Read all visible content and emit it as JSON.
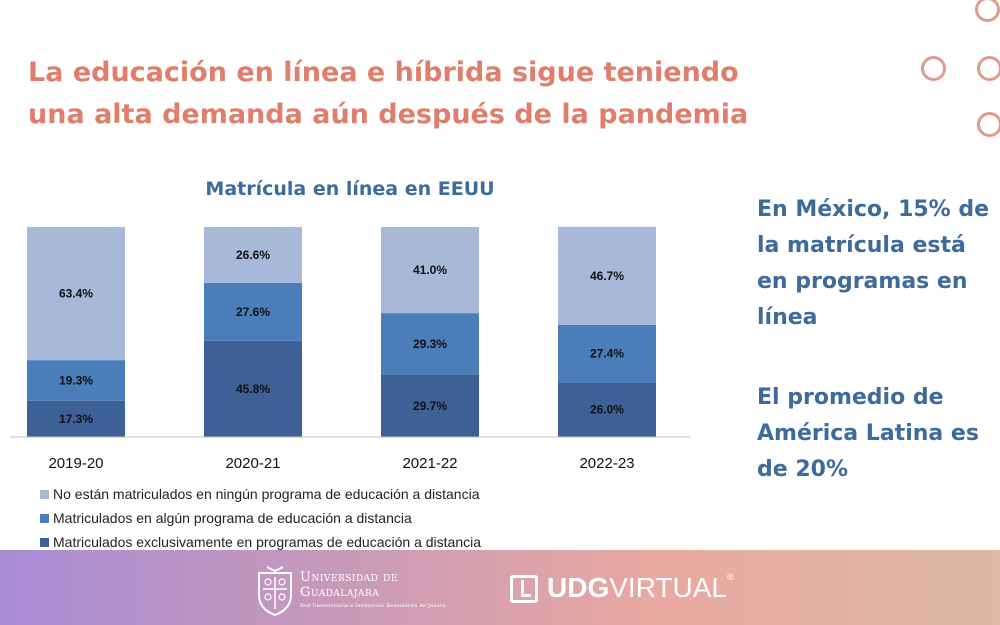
{
  "slide": {
    "title_line1": "La educación en línea e híbrida sigue teniendo",
    "title_line2": "una alta demanda aún después de la pandemia"
  },
  "side_text": {
    "block1": "En México, 15% de la matrícula está en programas en línea",
    "block2": "El promedio de América Latina es de 20%"
  },
  "chart_data": {
    "type": "bar",
    "stacked": true,
    "title": "Matrícula en línea en EEUU",
    "categories": [
      "2019-20",
      "2020-21",
      "2021-22",
      "2022-23"
    ],
    "series": [
      {
        "name": "Matriculados exclusivamente en programas de educación a distancia",
        "values": [
          17.3,
          45.8,
          29.7,
          26.0
        ],
        "labels": [
          "17.3%",
          "45.8%",
          "29.7%",
          "26.0%"
        ],
        "color": "#3d6196"
      },
      {
        "name": "Matriculados en algún programa de educación a distancia",
        "values": [
          19.3,
          27.6,
          29.3,
          27.4
        ],
        "labels": [
          "19.3%",
          "27.6%",
          "29.3%",
          "27.4%"
        ],
        "color": "#4a7ebb"
      },
      {
        "name": "No están matriculados en ningún programa de educación a distancia",
        "values": [
          63.4,
          26.6,
          41.0,
          46.7
        ],
        "labels": [
          "63.4%",
          "26.6%",
          "41.0%",
          "46.7%"
        ],
        "color": "#a7b8d8"
      }
    ],
    "ylim": [
      0,
      100
    ],
    "legend_position": "bottom"
  },
  "footer": {
    "university_line1": "Universidad de",
    "university_line2": "Guadalajara",
    "university_sub": "Red Universitaria e Institución Benemérita de Jalisco",
    "brand_bold": "UDG",
    "brand_rest": "VIRTUAL",
    "brand_mark": "®"
  }
}
